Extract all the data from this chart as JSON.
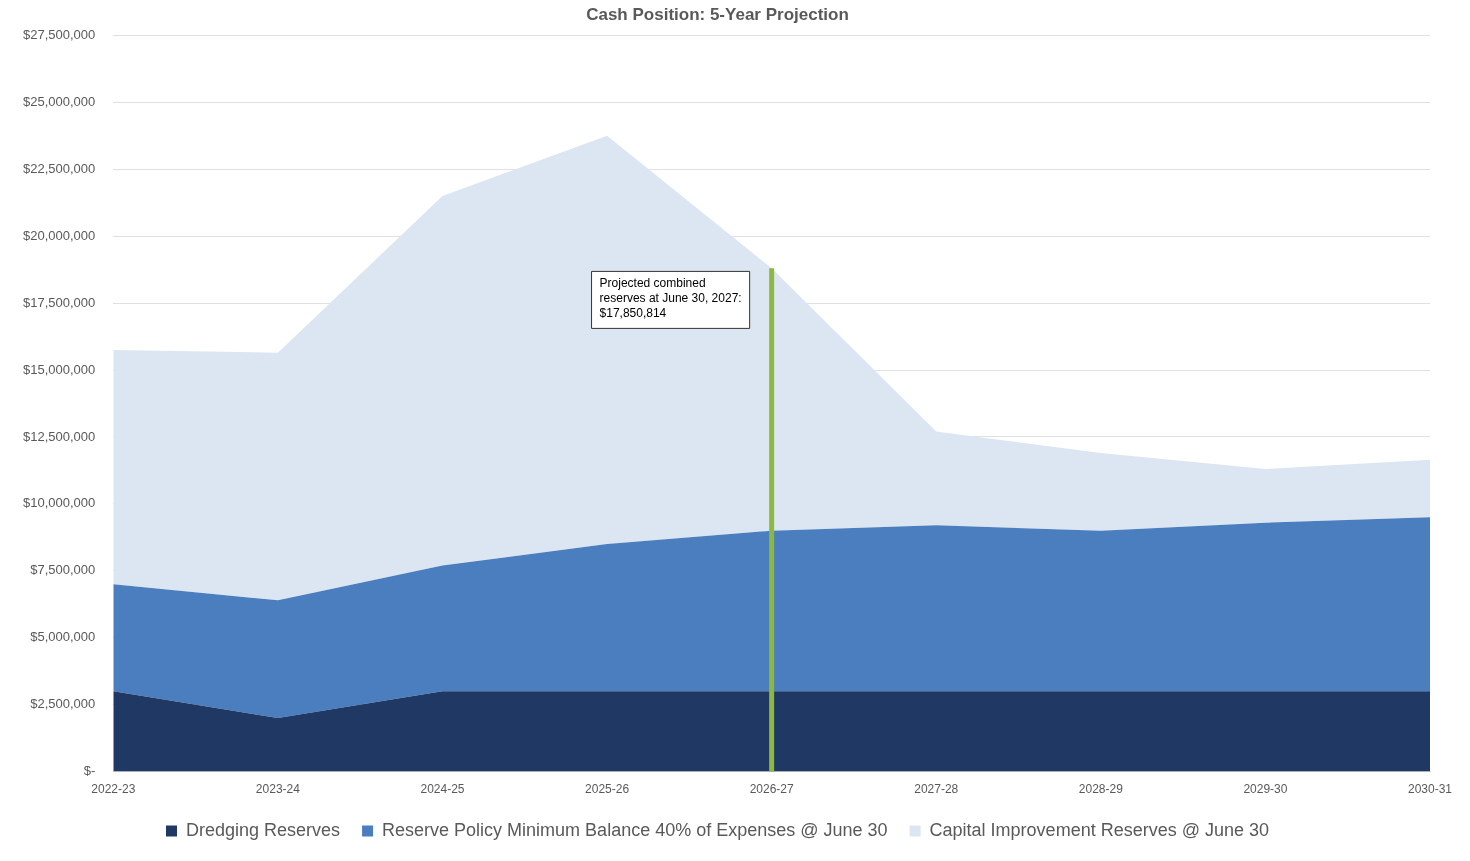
{
  "chart_data": {
    "type": "area",
    "title": "Cash Position: 5-Year Projection",
    "stacked": true,
    "grid": "y",
    "legend": "bottom",
    "marker": "none",
    "categories": [
      "2022-23",
      "2023-24",
      "2024-25",
      "2025-26",
      "2026-27",
      "2027-28",
      "2028-29",
      "2029-30",
      "2030-31"
    ],
    "series": [
      {
        "name": "Dredging Reserves",
        "color": "#203864",
        "values": [
          3000000,
          2000000,
          3000000,
          3000000,
          3000000,
          3000000,
          3000000,
          3000000,
          3000000
        ]
      },
      {
        "name": "Reserve Policy Minimum Balance 40% of Expenses @ June 30",
        "color": "#4a7ebf",
        "values": [
          4000000,
          4400000,
          4700000,
          5500000,
          6000000,
          6200000,
          6000000,
          6300000,
          6500000
        ]
      },
      {
        "name": "Capital Improvement Reserves @ June 30",
        "color": "#dce6f2",
        "values": [
          8750000,
          9250000,
          13800000,
          15250000,
          9800000,
          3500000,
          2900000,
          2000000,
          2150000
        ]
      }
    ],
    "ylim": [
      0,
      27500000
    ],
    "yticks": [
      {
        "value": 0,
        "label": "$-"
      },
      {
        "value": 2500000,
        "label": "$2,500,000"
      },
      {
        "value": 5000000,
        "label": "$5,000,000"
      },
      {
        "value": 7500000,
        "label": "$7,500,000"
      },
      {
        "value": 10000000,
        "label": "$10,000,000"
      },
      {
        "value": 12500000,
        "label": "$12,500,000"
      },
      {
        "value": 15000000,
        "label": "$15,000,000"
      },
      {
        "value": 17500000,
        "label": "$17,500,000"
      },
      {
        "value": 20000000,
        "label": "$20,000,000"
      },
      {
        "value": 22500000,
        "label": "$22,500,000"
      },
      {
        "value": 25000000,
        "label": "$25,000,000"
      },
      {
        "value": 27500000,
        "label": "$27,500,000"
      }
    ],
    "ref_lines": [
      {
        "axis": "x",
        "value": "2026-27",
        "color": "#8db83e"
      }
    ],
    "annotations": [
      "Projected combined\nreserves at June 30, 2027:\n$17,850,814"
    ]
  }
}
